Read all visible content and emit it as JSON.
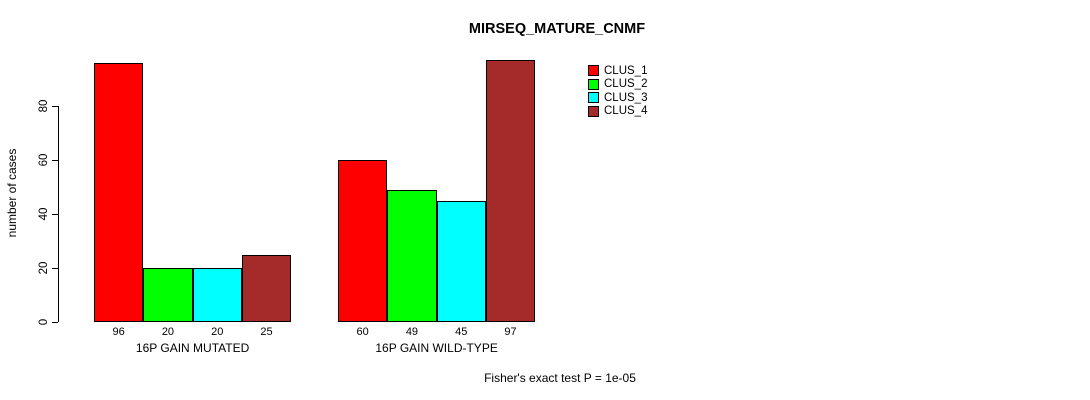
{
  "chart_data": {
    "type": "bar",
    "title": "MIRSEQ_MATURE_CNMF",
    "ylabel": "number of cases",
    "xlabel": "",
    "categories": [
      "16P GAIN MUTATED",
      "16P GAIN WILD-TYPE"
    ],
    "series": [
      {
        "name": "CLUS_1",
        "color": "#FF0000",
        "values": [
          96,
          60
        ]
      },
      {
        "name": "CLUS_2",
        "color": "#00FF00",
        "values": [
          20,
          49
        ]
      },
      {
        "name": "CLUS_3",
        "color": "#00FFFF",
        "values": [
          20,
          45
        ]
      },
      {
        "name": "CLUS_4",
        "color": "#A52A2A",
        "values": [
          25,
          97
        ]
      }
    ],
    "yticks": [
      0,
      20,
      40,
      60,
      80
    ],
    "ylim": [
      0,
      100
    ],
    "grid": false,
    "legend_position": "top-right",
    "bar_border_color": "#000000",
    "value_labels_shown": true,
    "annotation": "Fisher's exact test P = 1e-05"
  }
}
